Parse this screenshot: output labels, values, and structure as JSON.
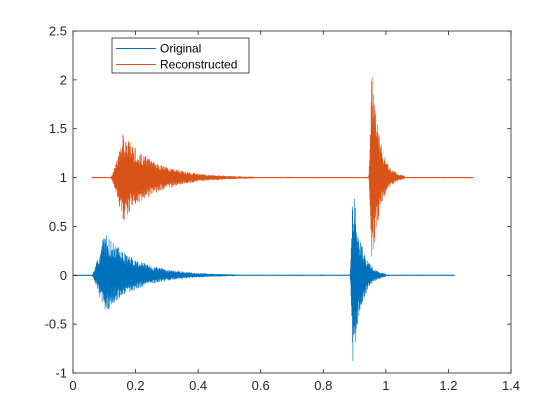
{
  "chart_data": {
    "type": "line",
    "title": "",
    "xlabel": "",
    "ylabel": "",
    "xlim": [
      0,
      1.4
    ],
    "ylim": [
      -1,
      2.5
    ],
    "xticks": [
      0,
      0.2,
      0.4,
      0.6,
      0.8,
      1,
      1.2,
      1.4
    ],
    "xtick_labels": [
      "0",
      "0.2",
      "0.4",
      "0.6",
      "0.8",
      "1",
      "1.2",
      "1.4"
    ],
    "yticks": [
      -1,
      -0.5,
      0,
      0.5,
      1,
      1.5,
      2,
      2.5
    ],
    "ytick_labels": [
      "-1",
      "-0.5",
      "0",
      "0.5",
      "1",
      "1.5",
      "2",
      "2.5"
    ],
    "grid": false,
    "legend_position": "top-left",
    "series": [
      {
        "name": "Original",
        "color": "#0072BD",
        "baseline": 0,
        "x_range": [
          0,
          1.22
        ],
        "bursts": [
          {
            "start": 0.06,
            "peak": 0.1,
            "end": 0.52,
            "pos_peak": 0.45,
            "neg_peak": -0.4
          },
          {
            "start": 0.885,
            "peak": 0.895,
            "end": 1.0,
            "pos_peak": 1.0,
            "neg_peak": -1.0
          }
        ]
      },
      {
        "name": "Reconstructed",
        "color": "#D95319",
        "baseline": 1,
        "x_range": [
          0.06,
          1.28
        ],
        "bursts": [
          {
            "start": 0.12,
            "peak": 0.16,
            "end": 0.58,
            "pos_peak": 1.45,
            "neg_peak": 0.55
          },
          {
            "start": 0.945,
            "peak": 0.955,
            "end": 1.06,
            "pos_peak": 2.15,
            "neg_peak": 0.0
          }
        ]
      }
    ]
  }
}
